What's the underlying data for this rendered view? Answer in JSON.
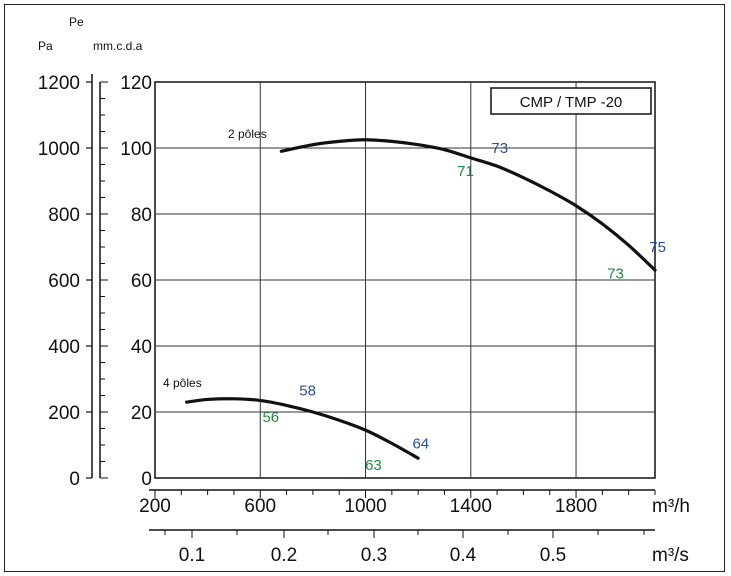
{
  "chart_data": {
    "type": "line",
    "title": "CMP / TMP  -20",
    "y_units": {
      "pa": "Pa",
      "pe": "Pe",
      "mmcda": "mm.c.d.a"
    },
    "x_units": {
      "flow_h": "m³/h",
      "flow_s": "m³/s"
    },
    "x_ticks": [
      200,
      600,
      1000,
      1400,
      1800
    ],
    "x_range": [
      200,
      2100
    ],
    "x2_ticks": [
      {
        "label": "0.1"
      },
      {
        "label": "0.2"
      },
      {
        "label": "0.3"
      },
      {
        "label": "0.4"
      },
      {
        "label": "0.5"
      }
    ],
    "y_ticks_mm": [
      0,
      20,
      40,
      60,
      80,
      100,
      120
    ],
    "y_ticks_pa": [
      0,
      200,
      400,
      600,
      800,
      1000,
      1200
    ],
    "y_range_mm": [
      0,
      120
    ],
    "grid": true,
    "legend_position": "top-right",
    "series": [
      {
        "name": "2 pôles",
        "x": [
          680,
          800,
          900,
          1000,
          1100,
          1200,
          1300,
          1400,
          1500,
          1600,
          1700,
          1800,
          1900,
          2000,
          2100
        ],
        "y": [
          99,
          101,
          102,
          102.5,
          102,
          101,
          99.5,
          97,
          94.5,
          91,
          87,
          82.5,
          77,
          70.5,
          63
        ]
      },
      {
        "name": "4 pôles",
        "x": [
          320,
          400,
          500,
          600,
          700,
          800,
          900,
          1000,
          1100,
          1200
        ],
        "y": [
          23,
          23.8,
          24,
          23.5,
          22,
          20,
          17.5,
          14.5,
          10.5,
          6
        ]
      }
    ],
    "annotations": [
      {
        "text": "73",
        "color": "#2a4fa0",
        "x": 1510,
        "y": 100
      },
      {
        "text": "71",
        "color": "#1e8a3c",
        "x": 1380,
        "y": 93
      },
      {
        "text": "75",
        "color": "#2a4fa0",
        "x": 2110,
        "y": 70
      },
      {
        "text": "73",
        "color": "#1e8a3c",
        "x": 1950,
        "y": 62
      },
      {
        "text": "58",
        "color": "#2a4fa0",
        "x": 780,
        "y": 26.5
      },
      {
        "text": "56",
        "color": "#1e8a3c",
        "x": 640,
        "y": 18.5
      },
      {
        "text": "64",
        "color": "#2a4fa0",
        "x": 1210,
        "y": 10.5
      },
      {
        "text": "63",
        "color": "#1e8a3c",
        "x": 1030,
        "y": 4
      }
    ]
  }
}
